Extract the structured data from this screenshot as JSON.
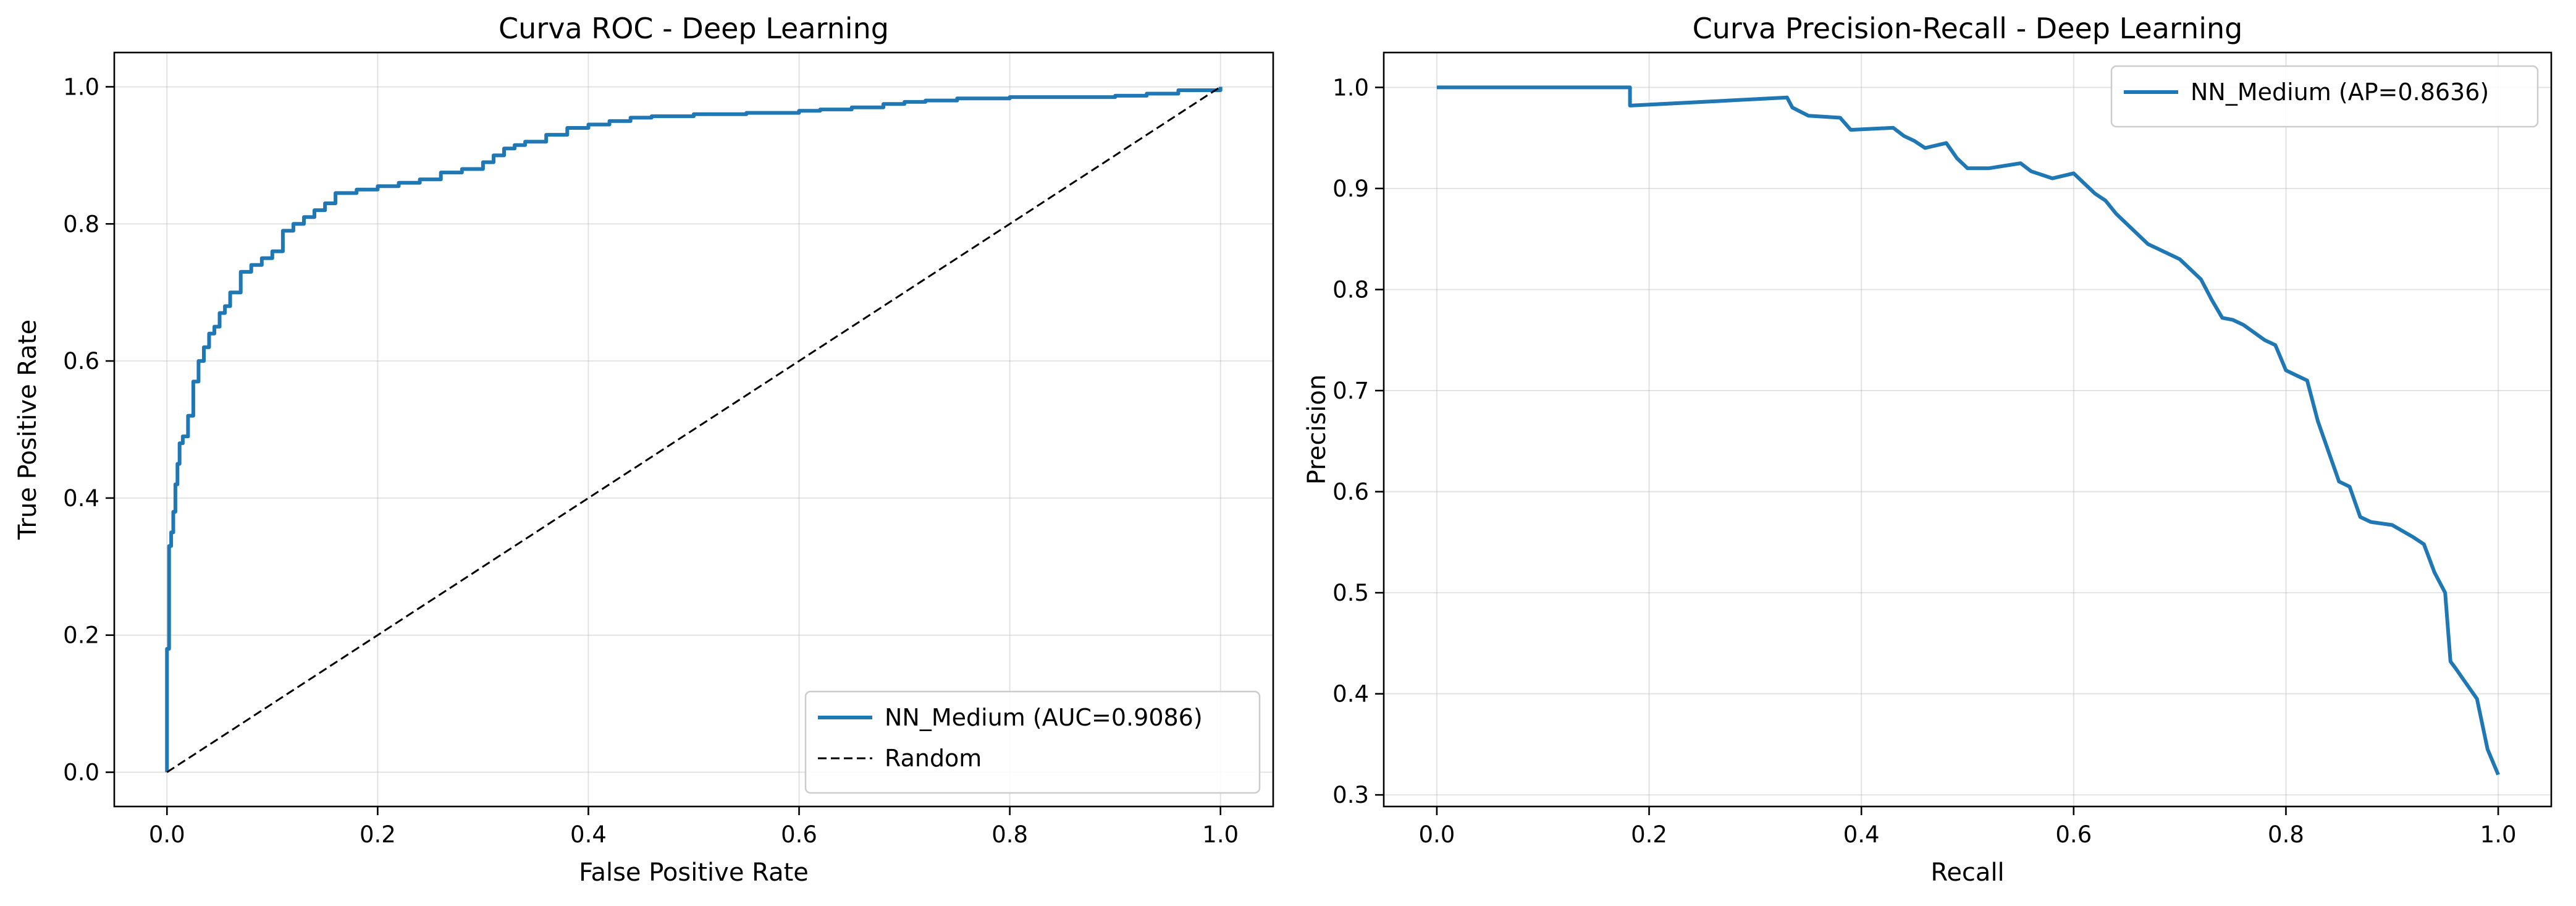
{
  "chart_data": [
    {
      "type": "line",
      "title": "Curva ROC - Deep Learning",
      "xlabel": "False Positive Rate",
      "ylabel": "True Positive Rate",
      "xlim": [
        -0.05,
        1.05
      ],
      "ylim": [
        -0.05,
        1.05
      ],
      "xticks": [
        "0.0",
        "0.2",
        "0.4",
        "0.6",
        "0.8",
        "1.0"
      ],
      "yticks": [
        "0.0",
        "0.2",
        "0.4",
        "0.6",
        "0.8",
        "1.0"
      ],
      "grid": true,
      "legend_position": "lower-right",
      "series": [
        {
          "name": "NN_Medium (AUC=0.9086)",
          "color": "#1f77b4",
          "style": "solid",
          "step": true,
          "x": [
            0.0,
            0.0,
            0.002,
            0.004,
            0.006,
            0.008,
            0.01,
            0.012,
            0.015,
            0.02,
            0.025,
            0.03,
            0.035,
            0.04,
            0.045,
            0.05,
            0.055,
            0.06,
            0.07,
            0.08,
            0.09,
            0.1,
            0.11,
            0.12,
            0.13,
            0.14,
            0.15,
            0.16,
            0.18,
            0.2,
            0.22,
            0.24,
            0.26,
            0.28,
            0.3,
            0.31,
            0.32,
            0.33,
            0.34,
            0.36,
            0.38,
            0.4,
            0.42,
            0.44,
            0.46,
            0.5,
            0.55,
            0.6,
            0.62,
            0.65,
            0.68,
            0.7,
            0.72,
            0.75,
            0.8,
            0.85,
            0.9,
            0.93,
            0.96,
            1.0
          ],
          "y": [
            0.0,
            0.18,
            0.33,
            0.35,
            0.38,
            0.42,
            0.45,
            0.48,
            0.49,
            0.52,
            0.57,
            0.6,
            0.62,
            0.64,
            0.65,
            0.67,
            0.68,
            0.7,
            0.73,
            0.74,
            0.75,
            0.76,
            0.79,
            0.8,
            0.81,
            0.82,
            0.83,
            0.845,
            0.85,
            0.855,
            0.86,
            0.865,
            0.875,
            0.88,
            0.89,
            0.9,
            0.91,
            0.915,
            0.92,
            0.93,
            0.94,
            0.945,
            0.95,
            0.955,
            0.957,
            0.96,
            0.962,
            0.965,
            0.967,
            0.97,
            0.975,
            0.978,
            0.98,
            0.983,
            0.985,
            0.985,
            0.987,
            0.99,
            0.995,
            1.0
          ]
        },
        {
          "name": "Random",
          "color": "#000000",
          "style": "dashed",
          "step": false,
          "x": [
            0.0,
            1.0
          ],
          "y": [
            0.0,
            1.0
          ]
        }
      ]
    },
    {
      "type": "line",
      "title": "Curva Precision-Recall - Deep Learning",
      "xlabel": "Recall",
      "ylabel": "Precision",
      "xlim": [
        -0.05,
        1.05
      ],
      "ylim": [
        0.2885,
        1.0345
      ],
      "xticks": [
        "0.0",
        "0.2",
        "0.4",
        "0.6",
        "0.8",
        "1.0"
      ],
      "yticks": [
        "0.3",
        "0.4",
        "0.5",
        "0.6",
        "0.7",
        "0.8",
        "0.9",
        "1.0"
      ],
      "grid": true,
      "legend_position": "upper-right",
      "series": [
        {
          "name": "NN_Medium (AP=0.8636)",
          "color": "#1f77b4",
          "style": "solid",
          "step": false,
          "x": [
            0.0,
            0.182,
            0.182,
            0.33,
            0.335,
            0.35,
            0.38,
            0.39,
            0.43,
            0.44,
            0.45,
            0.46,
            0.48,
            0.49,
            0.5,
            0.52,
            0.55,
            0.56,
            0.58,
            0.6,
            0.61,
            0.62,
            0.63,
            0.64,
            0.65,
            0.66,
            0.67,
            0.68,
            0.7,
            0.72,
            0.73,
            0.74,
            0.75,
            0.76,
            0.78,
            0.79,
            0.8,
            0.81,
            0.82,
            0.83,
            0.84,
            0.85,
            0.86,
            0.87,
            0.88,
            0.9,
            0.92,
            0.93,
            0.94,
            0.95,
            0.955,
            0.96,
            0.97,
            0.98,
            0.99,
            1.0
          ],
          "y": [
            1.0,
            1.0,
            0.982,
            0.99,
            0.98,
            0.972,
            0.97,
            0.958,
            0.96,
            0.952,
            0.947,
            0.94,
            0.945,
            0.93,
            0.92,
            0.92,
            0.925,
            0.917,
            0.91,
            0.915,
            0.905,
            0.895,
            0.888,
            0.875,
            0.865,
            0.855,
            0.845,
            0.84,
            0.83,
            0.81,
            0.79,
            0.772,
            0.77,
            0.765,
            0.75,
            0.745,
            0.72,
            0.715,
            0.71,
            0.67,
            0.64,
            0.61,
            0.605,
            0.575,
            0.57,
            0.567,
            0.555,
            0.548,
            0.52,
            0.5,
            0.432,
            0.425,
            0.41,
            0.395,
            0.345,
            0.32
          ]
        }
      ]
    }
  ]
}
